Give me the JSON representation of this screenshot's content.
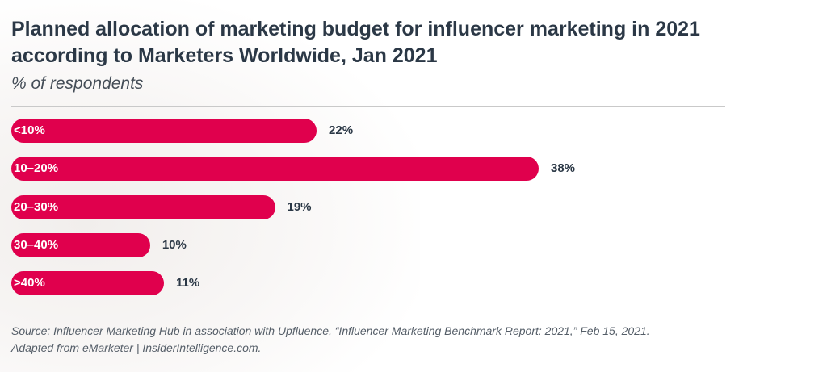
{
  "chart_data": {
    "type": "bar",
    "orientation": "horizontal",
    "title": "Planned allocation of marketing budget for influencer marketing in 2021 according to Marketers Worldwide, Jan 2021",
    "subtitle": "% of respondents",
    "categories": [
      "<10%",
      "10–20%",
      "20–30%",
      "30–40%",
      ">40%"
    ],
    "values": [
      22,
      38,
      19,
      10,
      11
    ],
    "value_labels": [
      "22%",
      "38%",
      "19%",
      "10%",
      "11%"
    ],
    "bar_color": "#e0004d",
    "grid": false,
    "source": "Source: Influencer Marketing Hub in association with Upfluence, “Influencer Marketing Benchmark Report: 2021,” Feb 15, 2021.",
    "source_note": "Adapted from eMarketer | InsiderIntelligence.com."
  }
}
